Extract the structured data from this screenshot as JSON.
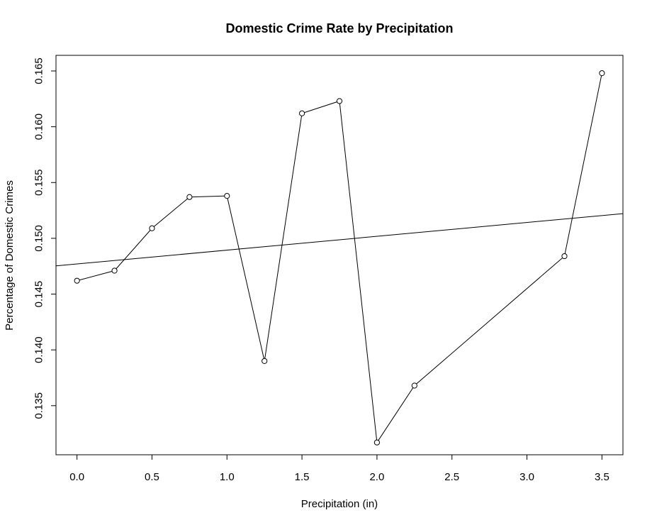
{
  "chart_data": {
    "type": "line",
    "title": "Domestic Crime Rate by Precipitation",
    "xlabel": "Precipitation (in)",
    "ylabel": "Percentage of Domestic Crimes",
    "xlim": [
      -0.14,
      3.64
    ],
    "ylim": [
      0.1306,
      0.1664
    ],
    "x_ticks": [
      "0.0",
      "0.5",
      "1.0",
      "1.5",
      "2.0",
      "2.5",
      "3.0",
      "3.5"
    ],
    "y_ticks": [
      "0.135",
      "0.140",
      "0.145",
      "0.150",
      "0.155",
      "0.160",
      "0.165"
    ],
    "grid": false,
    "legend": "none",
    "series": [
      {
        "marker": "open-circle",
        "color": "#000000",
        "points": [
          {
            "x": 0.0,
            "y": 0.1462
          },
          {
            "x": 0.25,
            "y": 0.1471
          },
          {
            "x": 0.5,
            "y": 0.1509
          },
          {
            "x": 0.75,
            "y": 0.1537
          },
          {
            "x": 1.0,
            "y": 0.1538
          },
          {
            "x": 1.25,
            "y": 0.139
          },
          {
            "x": 1.5,
            "y": 0.1612
          },
          {
            "x": 1.75,
            "y": 0.1623
          },
          {
            "x": 2.0,
            "y": 0.1317
          },
          {
            "x": 2.25,
            "y": 0.1368
          },
          {
            "x": 3.25,
            "y": 0.1484
          },
          {
            "x": 3.5,
            "y": 0.1648
          }
        ]
      }
    ],
    "trend_line": {
      "intercept": 0.1477,
      "slope": 0.00124,
      "color": "#000000"
    }
  }
}
